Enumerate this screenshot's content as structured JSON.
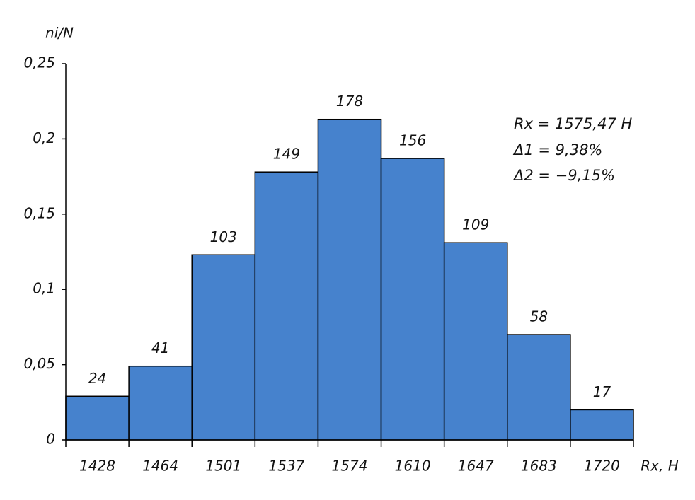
{
  "chart_data": {
    "type": "bar",
    "y_label": "ni/N",
    "x_label": "Rx, H",
    "categories": [
      "1428",
      "1464",
      "1501",
      "1537",
      "1574",
      "1610",
      "1647",
      "1683",
      "1720"
    ],
    "values": [
      0.029,
      0.049,
      0.123,
      0.178,
      0.213,
      0.187,
      0.131,
      0.07,
      0.02
    ],
    "counts": [
      24,
      41,
      103,
      149,
      178,
      156,
      109,
      58,
      17
    ],
    "color": "#4682cd",
    "ylim": [
      0,
      0.25
    ],
    "yticks": [
      0,
      {
        "value": 0.05,
        "label": "0,05"
      },
      {
        "value": 0.1,
        "label": "0,1"
      },
      {
        "value": 0.15,
        "label": "0,15"
      },
      {
        "value": 0.2,
        "label": "0,2"
      },
      {
        "value": 0.25,
        "label": "0,25"
      }
    ],
    "annotations": [
      "Rx = 1575,47 H",
      "Δ1 = 9,38%",
      "Δ2 = −9,15%"
    ]
  }
}
